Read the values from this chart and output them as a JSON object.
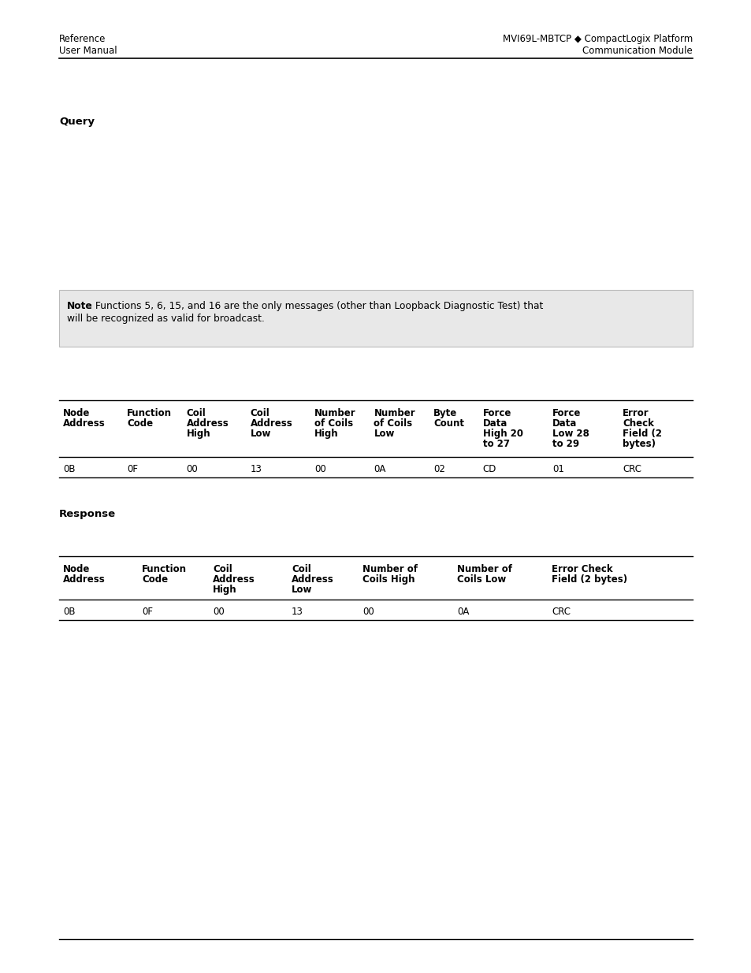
{
  "header_left_line1": "Reference",
  "header_left_line2": "User Manual",
  "header_right_line1": "MVI69L-MBTCP ◆ CompactLogix Platform",
  "header_right_line2": "Communication Module",
  "query_label": "Query",
  "note_bold": "Note",
  "note_rest": ": Functions 5, 6, 15, and 16 are the only messages (other than Loopback Diagnostic Test) that",
  "note_line2": "will be recognized as valid for broadcast.",
  "query_table_headers": [
    "Node\nAddress",
    "Function\nCode",
    "Coil\nAddress\nHigh",
    "Coil\nAddress\nLow",
    "Number\nof Coils\nHigh",
    "Number\nof Coils\nLow",
    "Byte\nCount",
    "Force\nData\nHigh 20\nto 27",
    "Force\nData\nLow 28\nto 29",
    "Error\nCheck\nField (2\nbytes)"
  ],
  "query_table_data": [
    [
      "0B",
      "0F",
      "00",
      "13",
      "00",
      "0A",
      "02",
      "CD",
      "01",
      "CRC"
    ]
  ],
  "response_label": "Response",
  "response_table_headers": [
    "Node\nAddress",
    "Function\nCode",
    "Coil\nAddress\nHigh",
    "Coil\nAddress\nLow",
    "Number of\nCoils High",
    "Number of\nCoils Low",
    "Error Check\nField (2 bytes)"
  ],
  "response_table_data": [
    [
      "0B",
      "0F",
      "00",
      "13",
      "00",
      "0A",
      "CRC"
    ]
  ],
  "background_color": "#ffffff",
  "note_bg_color": "#e8e8e8",
  "text_color": "#000000",
  "query_col_widths": [
    75,
    70,
    75,
    75,
    70,
    70,
    58,
    82,
    82,
    87
  ],
  "response_col_widths": [
    100,
    90,
    100,
    90,
    120,
    120,
    184
  ]
}
